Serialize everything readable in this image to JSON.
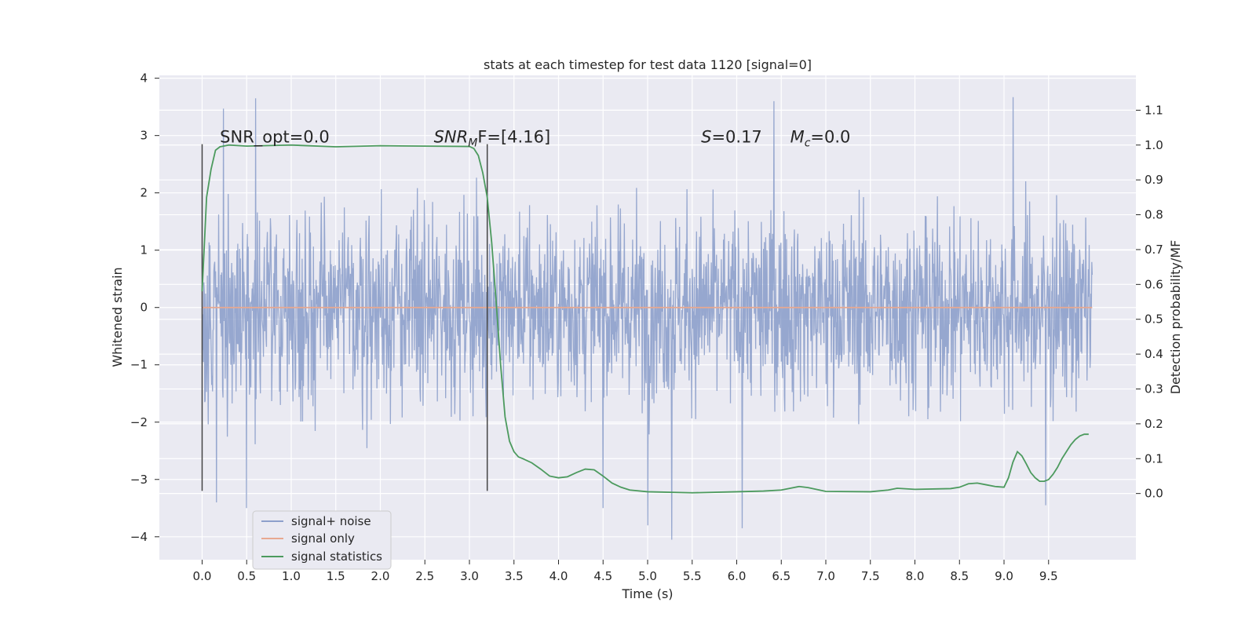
{
  "chart_data": {
    "type": "line",
    "title": "stats at each timestep for test data 1120 [signal=0]",
    "xlabel": "Time (s)",
    "ylabel": "Whitened strain",
    "y2label": "Detection probability/MF",
    "xlim": [
      -0.48,
      10.48
    ],
    "ylim": [
      -4.4,
      4.05
    ],
    "y2lim": [
      -0.19,
      1.2
    ],
    "xticks": [
      0.0,
      0.5,
      1.0,
      1.5,
      2.0,
      2.5,
      3.0,
      3.5,
      4.0,
      4.5,
      5.0,
      5.5,
      6.0,
      6.5,
      7.0,
      7.5,
      8.0,
      8.5,
      9.0,
      9.5
    ],
    "xtick_labels": [
      "0.0",
      "0.5",
      "1.0",
      "1.5",
      "2.0",
      "2.5",
      "3.0",
      "3.5",
      "4.0",
      "4.5",
      "5.0",
      "5.5",
      "6.0",
      "6.5",
      "7.0",
      "7.5",
      "8.0",
      "8.5",
      "9.0",
      "9.5"
    ],
    "yticks": [
      -4,
      -3,
      -2,
      -1,
      0,
      1,
      2,
      3,
      4
    ],
    "ytick_labels": [
      "−4",
      "−3",
      "−2",
      "−1",
      "0",
      "1",
      "2",
      "3",
      "4"
    ],
    "y2ticks": [
      0.0,
      0.1,
      0.2,
      0.3,
      0.4,
      0.5,
      0.6,
      0.7,
      0.8,
      0.9,
      1.0,
      1.1
    ],
    "y2tick_labels": [
      "0.0",
      "0.1",
      "0.2",
      "0.3",
      "0.4",
      "0.5",
      "0.6",
      "0.7",
      "0.8",
      "0.9",
      "1.0",
      "1.1"
    ],
    "grid": true,
    "legend_position": "lower-left",
    "series": [
      {
        "name": "signal+ noise",
        "color": "#8da0cb",
        "axis": "left",
        "x_range": [
          0.0,
          9.99
        ],
        "n_points": 2048,
        "approx_range": [
          -4.05,
          3.65
        ],
        "extrema": [
          {
            "x": 0.24,
            "y": 3.47
          },
          {
            "x": 0.6,
            "y": 3.65
          },
          {
            "x": 0.16,
            "y": -3.4
          },
          {
            "x": 0.5,
            "y": -3.5
          },
          {
            "x": 4.5,
            "y": -3.5
          },
          {
            "x": 5.0,
            "y": -3.8
          },
          {
            "x": 5.27,
            "y": -4.05
          },
          {
            "x": 6.06,
            "y": -3.85
          },
          {
            "x": 6.42,
            "y": 3.6
          },
          {
            "x": 9.1,
            "y": 3.67
          },
          {
            "x": 9.47,
            "y": -3.45
          }
        ]
      },
      {
        "name": "signal only",
        "color": "#e8a890",
        "axis": "left",
        "x": [
          0.0,
          9.99
        ],
        "y": [
          0.0,
          0.0
        ]
      },
      {
        "name": "signal statistics",
        "color": "#4c9a5e",
        "axis": "right",
        "x": [
          0.0,
          0.05,
          0.1,
          0.15,
          0.2,
          0.3,
          0.5,
          1.0,
          1.5,
          2.0,
          2.5,
          3.0,
          3.05,
          3.1,
          3.15,
          3.2,
          3.25,
          3.3,
          3.35,
          3.4,
          3.45,
          3.5,
          3.55,
          3.6,
          3.7,
          3.8,
          3.9,
          4.0,
          4.1,
          4.2,
          4.3,
          4.4,
          4.5,
          4.6,
          4.7,
          4.8,
          5.0,
          5.5,
          6.0,
          6.3,
          6.5,
          6.6,
          6.7,
          6.8,
          7.0,
          7.5,
          7.7,
          7.8,
          8.0,
          8.4,
          8.5,
          8.6,
          8.7,
          8.8,
          8.9,
          9.0,
          9.05,
          9.1,
          9.15,
          9.2,
          9.25,
          9.3,
          9.35,
          9.4,
          9.45,
          9.5,
          9.55,
          9.6,
          9.65,
          9.7,
          9.75,
          9.8,
          9.85,
          9.9,
          9.95
        ],
        "y": [
          0.58,
          0.85,
          0.93,
          0.985,
          0.995,
          1.0,
          0.997,
          1.0,
          0.995,
          0.998,
          0.997,
          0.996,
          0.99,
          0.97,
          0.92,
          0.85,
          0.72,
          0.55,
          0.37,
          0.22,
          0.15,
          0.12,
          0.105,
          0.1,
          0.088,
          0.07,
          0.05,
          0.045,
          0.048,
          0.06,
          0.07,
          0.068,
          0.05,
          0.03,
          0.018,
          0.01,
          0.005,
          0.002,
          0.005,
          0.007,
          0.01,
          0.015,
          0.02,
          0.017,
          0.006,
          0.005,
          0.01,
          0.015,
          0.012,
          0.014,
          0.018,
          0.028,
          0.03,
          0.025,
          0.02,
          0.018,
          0.045,
          0.09,
          0.12,
          0.108,
          0.085,
          0.06,
          0.045,
          0.035,
          0.035,
          0.04,
          0.055,
          0.075,
          0.1,
          0.12,
          0.14,
          0.155,
          0.165,
          0.17,
          0.17
        ]
      }
    ],
    "vlines": [
      {
        "x": 0.0,
        "ymin": -3.2,
        "ymax": 2.85,
        "color": "#444444"
      },
      {
        "x": 3.2,
        "ymin": -3.2,
        "ymax": 2.85,
        "color": "#444444"
      }
    ],
    "annotations": [
      {
        "x": 0.2,
        "y": 2.88,
        "text": "SNR_opt=0.0",
        "math": false
      },
      {
        "x": 2.6,
        "y": 2.88,
        "base": "SNR",
        "sub": "M",
        "rest": "F=[4.16]",
        "math": true
      },
      {
        "x": 5.6,
        "y": 2.88,
        "base": "S",
        "sub": "",
        "rest": "=0.17",
        "math": true
      },
      {
        "x": 6.6,
        "y": 2.88,
        "base": "M",
        "sub": "c",
        "rest": "=0.0",
        "math": true
      }
    ]
  }
}
